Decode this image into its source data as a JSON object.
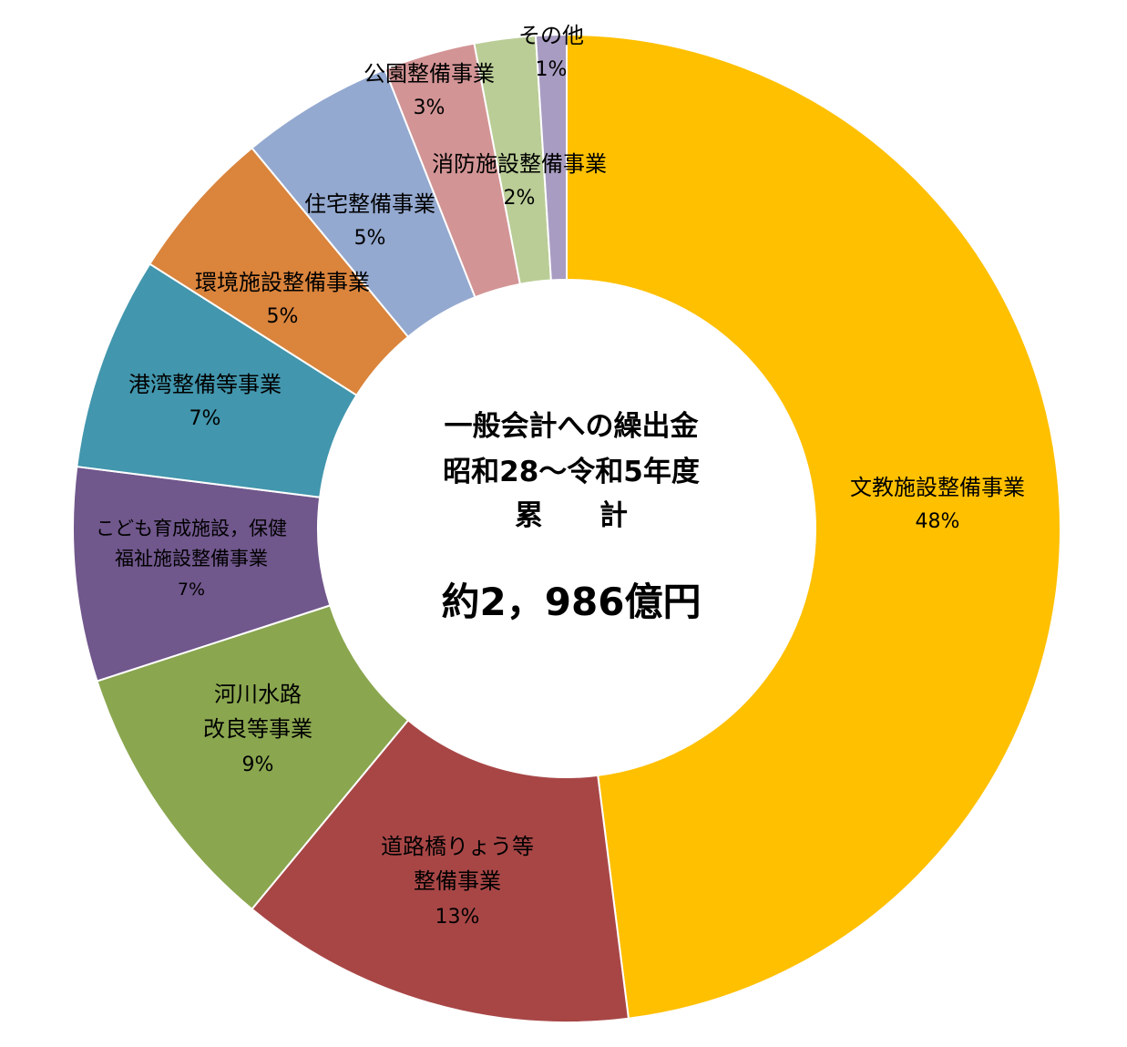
{
  "chart_data": {
    "type": "pie",
    "variant": "donut",
    "title": "一般会計への繰出金",
    "subtitle": "昭和28～令和5年度",
    "total_caption": "累　　計",
    "total_value": "約2，986億円",
    "legend": "none",
    "slices": [
      {
        "label_lines": [
          "文教施設整備事業"
        ],
        "value": 48,
        "value_label": "48%",
        "color": "#FFC000",
        "text_color": "#000000"
      },
      {
        "label_lines": [
          "道路橋りょう等",
          "整備事業"
        ],
        "value": 13,
        "value_label": "13%",
        "color": "#A84646",
        "text_color": "#FFFFFF"
      },
      {
        "label_lines": [
          "河川水路",
          "改良等事業"
        ],
        "value": 9,
        "value_label": "9%",
        "color": "#8AA64F",
        "text_color": "#000000"
      },
      {
        "label_lines": [
          "こども育成施設，保健",
          "福祉施設整備事業"
        ],
        "value": 7,
        "value_label": "7%",
        "color": "#70578C",
        "text_color": "#FFFFFF"
      },
      {
        "label_lines": [
          "港湾整備等事業"
        ],
        "value": 7,
        "value_label": "7%",
        "color": "#4296AD",
        "text_color": "#FFFFFF"
      },
      {
        "label_lines": [
          "環境施設整備事業"
        ],
        "value": 5,
        "value_label": "5%",
        "color": "#DA843C",
        "text_color": "#000000"
      },
      {
        "label_lines": [
          "住宅整備事業"
        ],
        "value": 5,
        "value_label": "5%",
        "color": "#94A9D0",
        "text_color": "#000000"
      },
      {
        "label_lines": [
          "公園整備事業"
        ],
        "value": 3,
        "value_label": "3%",
        "color": "#D39495",
        "text_color": "#000000"
      },
      {
        "label_lines": [
          "消防施設整備事業"
        ],
        "value": 2,
        "value_label": "2%",
        "color": "#BACD96",
        "text_color": "#000000"
      },
      {
        "label_lines": [
          "その他"
        ],
        "value": 1,
        "value_label": "1%",
        "color": "#A89CC2",
        "text_color": "#000000"
      }
    ]
  }
}
